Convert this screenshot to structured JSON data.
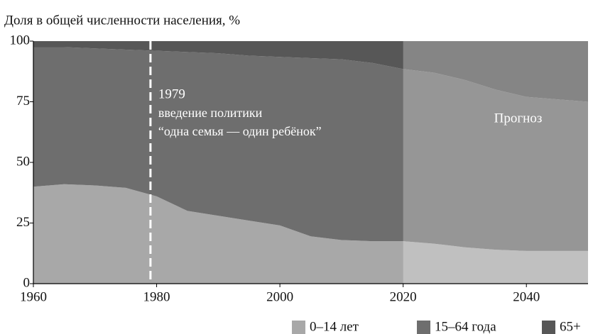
{
  "chart_data": {
    "type": "stacked_area",
    "title": "Доля в общей численности населения, %",
    "x": [
      1960,
      1965,
      1970,
      1975,
      1980,
      1985,
      1990,
      1995,
      2000,
      2005,
      2010,
      2015,
      2020,
      2025,
      2030,
      2035,
      2040,
      2045,
      2050
    ],
    "series": [
      {
        "name": "0–14 лет",
        "color": "#a8a8a8",
        "values": [
          40,
          41,
          40.5,
          39.5,
          36,
          30,
          28,
          26,
          24,
          19.5,
          18,
          17.5,
          17.5,
          16.5,
          15,
          14,
          13.5,
          13.5,
          13.5
        ]
      },
      {
        "name": "15–64 года",
        "color": "#6e6e6e",
        "values": [
          57.5,
          56.5,
          56.5,
          57,
          60,
          65.5,
          67,
          68,
          69.5,
          73.5,
          74.5,
          73.5,
          71,
          70.5,
          69,
          66,
          63.5,
          62.5,
          61.5
        ]
      },
      {
        "name": "65+",
        "color": "#575757",
        "values": [
          2.5,
          2.5,
          3,
          3.5,
          4,
          4.5,
          5,
          6,
          6.5,
          7,
          7.5,
          9,
          11.5,
          13,
          16,
          20,
          23,
          24,
          25
        ]
      }
    ],
    "xlim": [
      1960,
      2050
    ],
    "xticks": [
      1960,
      1980,
      2000,
      2020,
      2040
    ],
    "ylim": [
      0,
      100
    ],
    "yticks": [
      0,
      25,
      50,
      75,
      100
    ],
    "annotations": [
      {
        "x": 1979,
        "lines": [
          "введение политики",
          "“одна семья — один ребёнок”"
        ]
      },
      {
        "x": 2020,
        "text": "Прогноз"
      }
    ]
  }
}
